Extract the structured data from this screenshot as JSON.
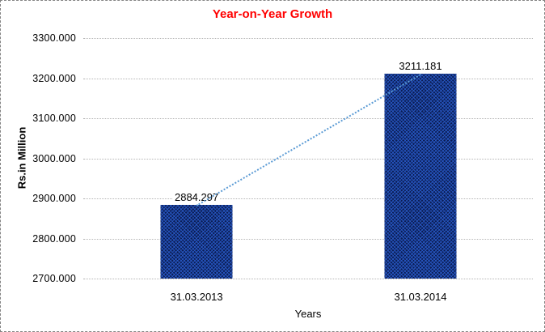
{
  "chart_data": {
    "type": "bar",
    "title": "Year-on-Year Growth",
    "title_color": "#FF0000",
    "categories": [
      "31.03.2013",
      "31.03.2014"
    ],
    "values": [
      2884.297,
      3211.181
    ],
    "value_labels": [
      "2884.297",
      "3211.181"
    ],
    "xlabel": "Years",
    "ylabel": "Rs.in Million",
    "ylim": [
      2700,
      3300
    ],
    "ytick_step": 100,
    "yticks": [
      "3300.000",
      "3200.000",
      "3100.000",
      "3000.000",
      "2900.000",
      "2800.000",
      "2700.000"
    ],
    "grid": "horizontal dotted gray",
    "legend": "none",
    "bar_color": "#0b1c52",
    "bar_pattern": "crosshatch",
    "trendline": {
      "type": "linear",
      "style": "dotted",
      "color": "#5B9BD5"
    }
  }
}
